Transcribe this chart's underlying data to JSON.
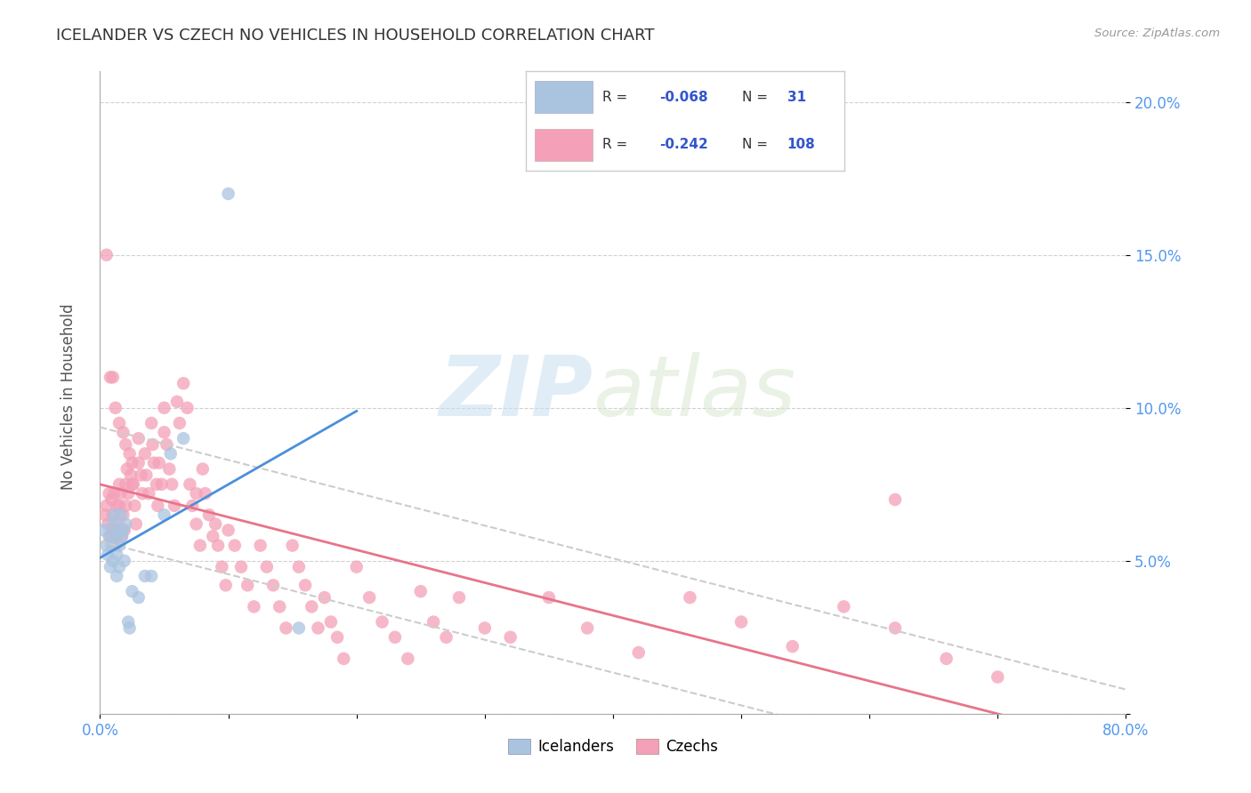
{
  "title": "ICELANDER VS CZECH NO VEHICLES IN HOUSEHOLD CORRELATION CHART",
  "source": "Source: ZipAtlas.com",
  "ylabel": "No Vehicles in Household",
  "xlim": [
    0.0,
    0.8
  ],
  "ylim": [
    0.0,
    0.21
  ],
  "xticks": [
    0.0,
    0.1,
    0.2,
    0.3,
    0.4,
    0.5,
    0.6,
    0.7,
    0.8
  ],
  "xticklabels_show": [
    "0.0%",
    "",
    "",
    "",
    "",
    "",
    "",
    "",
    "80.0%"
  ],
  "yticks": [
    0.0,
    0.05,
    0.1,
    0.15,
    0.2
  ],
  "yticklabels": [
    "",
    "5.0%",
    "10.0%",
    "15.0%",
    "20.0%"
  ],
  "icelanders_R": -0.068,
  "icelanders_N": 31,
  "czechs_R": -0.242,
  "czechs_N": 108,
  "icelander_color": "#aac4e0",
  "czech_color": "#f4a0b8",
  "icelander_line_color": "#4a90d9",
  "czech_line_color": "#e8748a",
  "ci_line_color": "#cccccc",
  "legend_label_icelanders": "Icelanders",
  "legend_label_czechs": "Czechs",
  "watermark_zip": "ZIP",
  "watermark_atlas": "atlas",
  "tick_color": "#5599ee",
  "icelanders_x": [
    0.003,
    0.005,
    0.006,
    0.007,
    0.008,
    0.009,
    0.01,
    0.01,
    0.011,
    0.012,
    0.013,
    0.013,
    0.014,
    0.015,
    0.015,
    0.016,
    0.017,
    0.018,
    0.019,
    0.02,
    0.022,
    0.023,
    0.025,
    0.03,
    0.035,
    0.04,
    0.05,
    0.055,
    0.065,
    0.1,
    0.155
  ],
  "icelanders_y": [
    0.06,
    0.055,
    0.052,
    0.058,
    0.048,
    0.055,
    0.062,
    0.05,
    0.065,
    0.058,
    0.052,
    0.045,
    0.06,
    0.055,
    0.048,
    0.065,
    0.058,
    0.06,
    0.05,
    0.062,
    0.03,
    0.028,
    0.04,
    0.038,
    0.045,
    0.045,
    0.065,
    0.085,
    0.09,
    0.17,
    0.028
  ],
  "czechs_x": [
    0.004,
    0.005,
    0.006,
    0.007,
    0.008,
    0.009,
    0.01,
    0.01,
    0.011,
    0.012,
    0.013,
    0.014,
    0.015,
    0.015,
    0.016,
    0.017,
    0.018,
    0.019,
    0.02,
    0.02,
    0.021,
    0.022,
    0.023,
    0.024,
    0.025,
    0.026,
    0.027,
    0.028,
    0.03,
    0.03,
    0.032,
    0.033,
    0.035,
    0.036,
    0.038,
    0.04,
    0.041,
    0.042,
    0.044,
    0.045,
    0.046,
    0.048,
    0.05,
    0.05,
    0.052,
    0.054,
    0.056,
    0.058,
    0.06,
    0.062,
    0.065,
    0.068,
    0.07,
    0.072,
    0.075,
    0.078,
    0.08,
    0.082,
    0.085,
    0.088,
    0.09,
    0.092,
    0.095,
    0.098,
    0.1,
    0.105,
    0.11,
    0.115,
    0.12,
    0.125,
    0.13,
    0.135,
    0.14,
    0.145,
    0.15,
    0.155,
    0.16,
    0.165,
    0.17,
    0.175,
    0.18,
    0.185,
    0.19,
    0.2,
    0.21,
    0.22,
    0.23,
    0.24,
    0.25,
    0.26,
    0.27,
    0.28,
    0.3,
    0.32,
    0.35,
    0.38,
    0.42,
    0.46,
    0.5,
    0.54,
    0.58,
    0.62,
    0.66,
    0.7
  ],
  "czechs_y": [
    0.065,
    0.068,
    0.062,
    0.072,
    0.058,
    0.07,
    0.065,
    0.06,
    0.072,
    0.055,
    0.068,
    0.062,
    0.075,
    0.068,
    0.072,
    0.058,
    0.065,
    0.06,
    0.075,
    0.068,
    0.08,
    0.072,
    0.085,
    0.078,
    0.082,
    0.075,
    0.068,
    0.062,
    0.09,
    0.082,
    0.078,
    0.072,
    0.085,
    0.078,
    0.072,
    0.095,
    0.088,
    0.082,
    0.075,
    0.068,
    0.082,
    0.075,
    0.1,
    0.092,
    0.088,
    0.08,
    0.075,
    0.068,
    0.102,
    0.095,
    0.108,
    0.1,
    0.075,
    0.068,
    0.062,
    0.055,
    0.08,
    0.072,
    0.065,
    0.058,
    0.062,
    0.055,
    0.048,
    0.042,
    0.06,
    0.055,
    0.048,
    0.042,
    0.035,
    0.055,
    0.048,
    0.042,
    0.035,
    0.028,
    0.055,
    0.048,
    0.042,
    0.035,
    0.028,
    0.038,
    0.03,
    0.025,
    0.018,
    0.048,
    0.038,
    0.03,
    0.025,
    0.018,
    0.04,
    0.03,
    0.025,
    0.038,
    0.028,
    0.025,
    0.038,
    0.028,
    0.02,
    0.038,
    0.03,
    0.022,
    0.035,
    0.028,
    0.018,
    0.012
  ],
  "extra_czech_x": [
    0.005,
    0.008,
    0.01,
    0.012,
    0.015,
    0.018,
    0.02,
    0.025,
    0.075,
    0.62
  ],
  "extra_czech_y": [
    0.15,
    0.11,
    0.11,
    0.1,
    0.095,
    0.092,
    0.088,
    0.075,
    0.072,
    0.07
  ]
}
